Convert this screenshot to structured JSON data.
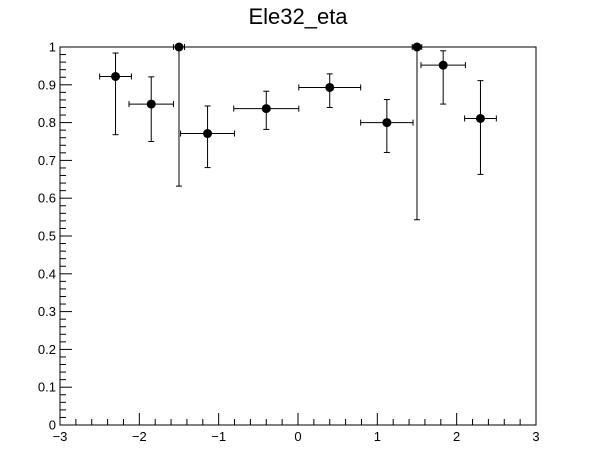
{
  "chart_data": {
    "type": "scatter",
    "title": "Ele32_eta",
    "xlabel": "",
    "ylabel": "",
    "xlim": [
      -3,
      3
    ],
    "ylim": [
      0,
      1
    ],
    "grid": false,
    "x_ticks": [
      -3,
      -2,
      -1,
      0,
      1,
      2,
      3
    ],
    "x_tick_labels": [
      "−3",
      "−2",
      "−1",
      "0",
      "1",
      "2",
      "3"
    ],
    "y_ticks": [
      0,
      0.1,
      0.2,
      0.3,
      0.4,
      0.5,
      0.6,
      0.7,
      0.8,
      0.9,
      1
    ],
    "y_tick_labels": [
      "0",
      "0.1",
      "0.2",
      "0.3",
      "0.4",
      "0.5",
      "0.6",
      "0.7",
      "0.8",
      "0.9",
      "1"
    ],
    "series": [
      {
        "name": "Ele32_eta",
        "points": [
          {
            "x": -2.3,
            "xerr": 0.2,
            "y": 0.922,
            "ylow": 0.768,
            "yhigh": 0.984
          },
          {
            "x": -1.85,
            "xerr": 0.28,
            "y": 0.849,
            "ylow": 0.75,
            "yhigh": 0.921
          },
          {
            "x": -1.5,
            "xerr": 0.07,
            "y": 1.0,
            "ylow": 0.632,
            "yhigh": 1.0
          },
          {
            "x": -1.14,
            "xerr": 0.34,
            "y": 0.771,
            "ylow": 0.681,
            "yhigh": 0.844
          },
          {
            "x": -0.4,
            "xerr": 0.41,
            "y": 0.837,
            "ylow": 0.782,
            "yhigh": 0.883
          },
          {
            "x": 0.4,
            "xerr": 0.39,
            "y": 0.893,
            "ylow": 0.84,
            "yhigh": 0.929
          },
          {
            "x": 1.12,
            "xerr": 0.33,
            "y": 0.8,
            "ylow": 0.721,
            "yhigh": 0.861
          },
          {
            "x": 1.5,
            "xerr": 0.06,
            "y": 1.0,
            "ylow": 0.543,
            "yhigh": 1.0
          },
          {
            "x": 1.83,
            "xerr": 0.28,
            "y": 0.952,
            "ylow": 0.849,
            "yhigh": 0.99
          },
          {
            "x": 2.3,
            "xerr": 0.2,
            "y": 0.811,
            "ylow": 0.663,
            "yhigh": 0.911
          }
        ]
      }
    ]
  }
}
